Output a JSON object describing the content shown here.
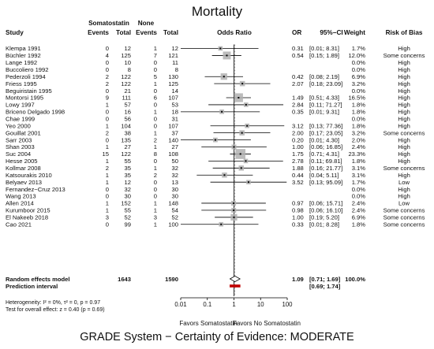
{
  "chart_data": {
    "type": "forest",
    "title": "Mortality",
    "footer": "GRADE System − Certainty of Evidence: MODERATE",
    "headers": {
      "group1": "Somatostatin",
      "group2": "None",
      "study": "Study",
      "events": "Events",
      "total": "Total",
      "odds_ratio": "Odds Ratio",
      "or": "OR",
      "ci": "95%−CI",
      "weight": "Weight",
      "risk": "Risk of Bias"
    },
    "studies": [
      {
        "study": "Klempa 1991",
        "e1": "0",
        "t1": "12",
        "e2": "1",
        "t2": "12",
        "or": 0.31,
        "lo": 0.01,
        "hi": 8.31,
        "or_text": "0.31",
        "ci_text": "[0.01; 8.31]",
        "weight": "1.7%",
        "w": 1.7,
        "risk": "High"
      },
      {
        "study": "Büchler 1992",
        "e1": "4",
        "t1": "125",
        "e2": "7",
        "t2": "121",
        "or": 0.54,
        "lo": 0.15,
        "hi": 1.89,
        "or_text": "0.54",
        "ci_text": "[0.15; 1.89]",
        "weight": "12.0%",
        "w": 12.0,
        "risk": "Some concerns"
      },
      {
        "study": "Lange 1992",
        "e1": "0",
        "t1": "10",
        "e2": "0",
        "t2": "11",
        "or": null,
        "lo": null,
        "hi": null,
        "or_text": "",
        "ci_text": "",
        "weight": "0.0%",
        "w": 0,
        "risk": "High"
      },
      {
        "study": "Buccoliero 1992",
        "e1": "0",
        "t1": "8",
        "e2": "0",
        "t2": "8",
        "or": null,
        "lo": null,
        "hi": null,
        "or_text": "",
        "ci_text": "",
        "weight": "0.0%",
        "w": 0,
        "risk": "High"
      },
      {
        "study": "Pederzoli 1994",
        "e1": "2",
        "t1": "122",
        "e2": "5",
        "t2": "130",
        "or": 0.42,
        "lo": 0.08,
        "hi": 2.19,
        "or_text": "0.42",
        "ci_text": "[0.08; 2.19]",
        "weight": "6.9%",
        "w": 6.9,
        "risk": "High"
      },
      {
        "study": "Friess 1995",
        "e1": "2",
        "t1": "122",
        "e2": "1",
        "t2": "125",
        "or": 2.07,
        "lo": 0.18,
        "hi": 23.09,
        "or_text": "2.07",
        "ci_text": "[0.18; 23.09]",
        "weight": "3.2%",
        "w": 3.2,
        "risk": "High"
      },
      {
        "study": "Beguiristain 1995",
        "e1": "0",
        "t1": "21",
        "e2": "0",
        "t2": "14",
        "or": null,
        "lo": null,
        "hi": null,
        "or_text": "",
        "ci_text": "",
        "weight": "0.0%",
        "w": 0,
        "risk": "High"
      },
      {
        "study": "Montorsi 1995",
        "e1": "9",
        "t1": "111",
        "e2": "6",
        "t2": "107",
        "or": 1.49,
        "lo": 0.51,
        "hi": 4.33,
        "or_text": "1.49",
        "ci_text": "[0.51; 4.33]",
        "weight": "16.5%",
        "w": 16.5,
        "risk": "High"
      },
      {
        "study": "Lowy 1997",
        "e1": "1",
        "t1": "57",
        "e2": "0",
        "t2": "53",
        "or": 2.84,
        "lo": 0.11,
        "hi": 71.27,
        "or_text": "2.84",
        "ci_text": "[0.11; 71.27]",
        "weight": "1.8%",
        "w": 1.8,
        "risk": "High"
      },
      {
        "study": "Briceno Delgado 1998",
        "e1": "0",
        "t1": "16",
        "e2": "1",
        "t2": "18",
        "or": 0.35,
        "lo": 0.01,
        "hi": 9.31,
        "or_text": "0.35",
        "ci_text": "[0.01; 9.31]",
        "weight": "1.8%",
        "w": 1.8,
        "risk": "High"
      },
      {
        "study": "Chae 1999",
        "e1": "0",
        "t1": "56",
        "e2": "0",
        "t2": "31",
        "or": null,
        "lo": null,
        "hi": null,
        "or_text": "",
        "ci_text": "",
        "weight": "0.0%",
        "w": 0,
        "risk": "High"
      },
      {
        "study": "Yeo 2000",
        "e1": "1",
        "t1": "104",
        "e2": "0",
        "t2": "107",
        "or": 3.12,
        "lo": 0.13,
        "hi": 77.36,
        "or_text": "3.12",
        "ci_text": "[0.13; 77.36]",
        "weight": "1.8%",
        "w": 1.8,
        "risk": "High"
      },
      {
        "study": "Gouillat 2001",
        "e1": "2",
        "t1": "38",
        "e2": "1",
        "t2": "37",
        "or": 2.0,
        "lo": 0.17,
        "hi": 23.05,
        "or_text": "2.00",
        "ci_text": "[0.17; 23.05]",
        "weight": "3.2%",
        "w": 3.2,
        "risk": "Some concerns"
      },
      {
        "study": "Sarr 2003",
        "e1": "0",
        "t1": "135",
        "e2": "2",
        "t2": "140",
        "or": 0.2,
        "lo": 0.01,
        "hi": 4.3,
        "or_text": "0.20",
        "ci_text": "[0.01; 4.30]",
        "weight": "2.0%",
        "w": 2.0,
        "risk": "High"
      },
      {
        "study": "Shan 2003",
        "e1": "1",
        "t1": "27",
        "e2": "1",
        "t2": "27",
        "or": 1.0,
        "lo": 0.06,
        "hi": 16.85,
        "or_text": "1.00",
        "ci_text": "[0.06; 16.85]",
        "weight": "2.4%",
        "w": 2.4,
        "risk": "High"
      },
      {
        "study": "Suc 2004",
        "e1": "15",
        "t1": "122",
        "e2": "8",
        "t2": "108",
        "or": 1.75,
        "lo": 0.71,
        "hi": 4.31,
        "or_text": "1.75",
        "ci_text": "[0.71; 4.31]",
        "weight": "23.3%",
        "w": 23.3,
        "risk": "High"
      },
      {
        "study": "Hesse 2005",
        "e1": "1",
        "t1": "55",
        "e2": "0",
        "t2": "50",
        "or": 2.78,
        "lo": 0.11,
        "hi": 69.81,
        "or_text": "2.78",
        "ci_text": "[0.11; 69.81]",
        "weight": "1.8%",
        "w": 1.8,
        "risk": "High"
      },
      {
        "study": "Kollmar 2008",
        "e1": "2",
        "t1": "35",
        "e2": "1",
        "t2": "32",
        "or": 1.88,
        "lo": 0.16,
        "hi": 21.77,
        "or_text": "1.88",
        "ci_text": "[0.16; 21.77]",
        "weight": "3.1%",
        "w": 3.1,
        "risk": "Some concerns"
      },
      {
        "study": "Katsourakis 2010",
        "e1": "1",
        "t1": "35",
        "e2": "2",
        "t2": "32",
        "or": 0.44,
        "lo": 0.04,
        "hi": 5.11,
        "or_text": "0.44",
        "ci_text": "[0.04; 5.11]",
        "weight": "3.1%",
        "w": 3.1,
        "risk": "High"
      },
      {
        "study": "Belyaev 2013",
        "e1": "1",
        "t1": "12",
        "e2": "0",
        "t2": "13",
        "or": 3.52,
        "lo": 0.13,
        "hi": 95.09,
        "or_text": "3.52",
        "ci_text": "[0.13; 95.09]",
        "weight": "1.7%",
        "w": 1.7,
        "risk": "Low"
      },
      {
        "study": "Fernandez−Cruz 2013",
        "e1": "0",
        "t1": "32",
        "e2": "0",
        "t2": "30",
        "or": null,
        "lo": null,
        "hi": null,
        "or_text": "",
        "ci_text": "",
        "weight": "0.0%",
        "w": 0,
        "risk": "High"
      },
      {
        "study": "Wang 2013",
        "e1": "0",
        "t1": "30",
        "e2": "0",
        "t2": "30",
        "or": null,
        "lo": null,
        "hi": null,
        "or_text": "",
        "ci_text": "",
        "weight": "0.0%",
        "w": 0,
        "risk": "High"
      },
      {
        "study": "Allen 2014",
        "e1": "1",
        "t1": "152",
        "e2": "1",
        "t2": "148",
        "or": 0.97,
        "lo": 0.06,
        "hi": 15.71,
        "or_text": "0.97",
        "ci_text": "[0.06; 15.71]",
        "weight": "2.4%",
        "w": 2.4,
        "risk": "Low"
      },
      {
        "study": "Kurumboor 2015",
        "e1": "1",
        "t1": "55",
        "e2": "1",
        "t2": "54",
        "or": 0.98,
        "lo": 0.06,
        "hi": 16.1,
        "or_text": "0.98",
        "ci_text": "[0.06; 16.10]",
        "weight": "2.4%",
        "w": 2.4,
        "risk": "Some concerns"
      },
      {
        "study": "El Nakeeb 2018",
        "e1": "3",
        "t1": "52",
        "e2": "3",
        "t2": "52",
        "or": 1.0,
        "lo": 0.19,
        "hi": 5.2,
        "or_text": "1.00",
        "ci_text": "[0.19; 5.20]",
        "weight": "6.9%",
        "w": 6.9,
        "risk": "Some concerns"
      },
      {
        "study": "Cao 2021",
        "e1": "0",
        "t1": "99",
        "e2": "1",
        "t2": "100",
        "or": 0.33,
        "lo": 0.01,
        "hi": 8.28,
        "or_text": "0.33",
        "ci_text": "[0.01; 8.28]",
        "weight": "1.8%",
        "w": 1.8,
        "risk": "Some concerns"
      }
    ],
    "pooled": {
      "label": "Random effects model",
      "t1": "1643",
      "t2": "1590",
      "or": 1.09,
      "lo": 0.71,
      "hi": 1.69,
      "or_text": "1.09",
      "ci_text": "[0.71; 1.69]",
      "weight": "100.0%"
    },
    "prediction": {
      "label": "Prediction interval",
      "lo": 0.69,
      "hi": 1.74,
      "ci_text": "[0.69; 1.74]"
    },
    "heterogeneity_text": "Heterogeneity: I² = 0%, τ² = 0, p = 0.97",
    "overall_test_text": "Test for overall effect: z = 0.40 (p = 0.69)",
    "x_axis": {
      "scale": "log",
      "ticks": [
        0.01,
        0.1,
        1,
        10,
        100
      ],
      "tick_labels": [
        "0.01",
        "0.1",
        "1",
        "10",
        "100"
      ],
      "lim": [
        0.01,
        100
      ]
    },
    "favors_left": "Favors Somatostatin",
    "favors_right": "Favors No Somatostatin",
    "colors": {
      "box": "#b0b0b0",
      "line": "#000000",
      "prediction": "#c00000",
      "diamond": "#ffffff"
    }
  }
}
